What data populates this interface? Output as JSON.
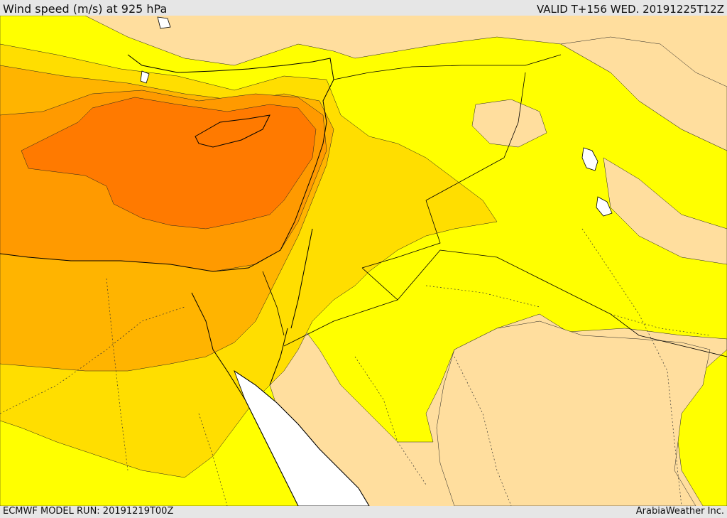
{
  "header": {
    "title": "Wind speed (m/s) at 925 hPa",
    "valid": "VALID T+156 WED. 20191225T12Z"
  },
  "footer": {
    "model_run": "ECMWF MODEL RUN: 20191219T00Z",
    "brand": "ArabiaWeather Inc."
  },
  "map": {
    "colors": {
      "band_0": "#ffde9e",
      "band_1": "#ffff00",
      "band_2": "#ffde00",
      "band_3": "#ffb400",
      "band_4": "#ff9a00",
      "band_5": "#ff7a00",
      "water_white": "#ffffff",
      "coastline": "#000000"
    }
  }
}
